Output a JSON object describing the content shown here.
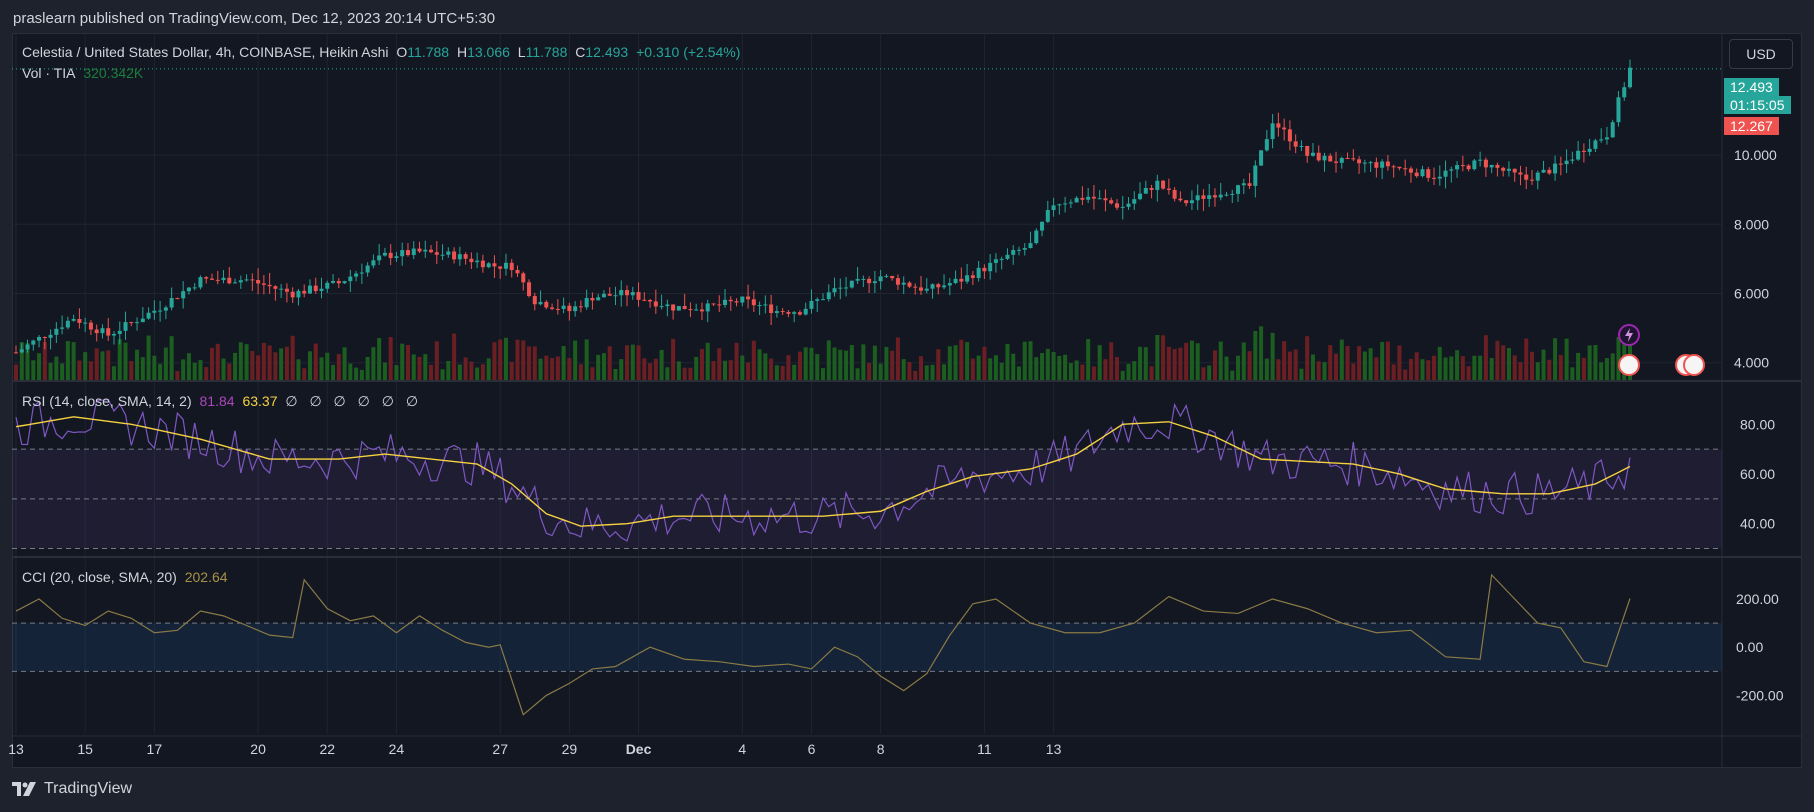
{
  "header": {
    "publish_line": "praslearn published on TradingView.com, Dec 12, 2023 20:14 UTC+5:30"
  },
  "legend_main": {
    "symbol": "Celestia / United States Dollar, 4h, COINBASE, Heikin Ashi",
    "o_label": "O",
    "o_value": "11.788",
    "h_label": "H",
    "h_value": "13.066",
    "l_label": "L",
    "l_value": "11.788",
    "c_label": "C",
    "c_value": "12.493",
    "change": "+0.310 (+2.54%)"
  },
  "legend_vol": {
    "label": "Vol · TIA",
    "value": "320.342K"
  },
  "legend_rsi": {
    "label": "RSI (14, close, SMA, 14, 2)",
    "value1": "81.84",
    "value2": "63.37",
    "extra": "∅ ∅ ∅ ∅ ∅ ∅"
  },
  "legend_cci": {
    "label": "CCI (20, close, SMA, 20)",
    "value": "202.64"
  },
  "currency_button": "USD",
  "price_tags": {
    "last_price": "12.493",
    "countdown": "01:15:05",
    "other_price": "12.267"
  },
  "footer": {
    "brand": "TradingView"
  },
  "colors": {
    "up": "#26a69a",
    "down": "#ef5350",
    "vol_up": "#1b5e20",
    "vol_down": "#6b1f23",
    "rsi_line": "#7e57c2",
    "rsi_ma": "#f5d142",
    "cci_line": "#8a7a46",
    "bg": "#131722"
  },
  "chart_data": [
    {
      "type": "candlestick",
      "title": "Celestia / United States Dollar, 4h, COINBASE, Heikin Ashi",
      "x_tick_labels": [
        "13",
        "15",
        "17",
        "20",
        "22",
        "24",
        "27",
        "29",
        "Dec",
        "4",
        "6",
        "8",
        "11",
        "13"
      ],
      "y_tick_labels": [
        "4.000",
        "6.000",
        "8.000",
        "10.000"
      ],
      "ylim": [
        3.5,
        13.5
      ],
      "close_path": [
        [
          0,
          4.3
        ],
        [
          10,
          5.3
        ],
        [
          16,
          4.8
        ],
        [
          25,
          5.6
        ],
        [
          32,
          6.4
        ],
        [
          40,
          6.4
        ],
        [
          48,
          6.0
        ],
        [
          56,
          6.3
        ],
        [
          64,
          7.1
        ],
        [
          70,
          7.2
        ],
        [
          76,
          7.1
        ],
        [
          83,
          6.8
        ],
        [
          86,
          6.8
        ],
        [
          90,
          5.8
        ],
        [
          96,
          5.5
        ],
        [
          100,
          5.9
        ],
        [
          106,
          6.0
        ],
        [
          114,
          5.6
        ],
        [
          120,
          5.6
        ],
        [
          126,
          5.8
        ],
        [
          132,
          5.5
        ],
        [
          136,
          5.5
        ],
        [
          142,
          6.1
        ],
        [
          150,
          6.5
        ],
        [
          158,
          6.1
        ],
        [
          164,
          6.4
        ],
        [
          170,
          6.9
        ],
        [
          176,
          7.4
        ],
        [
          180,
          8.6
        ],
        [
          186,
          8.8
        ],
        [
          192,
          8.5
        ],
        [
          198,
          9.2
        ],
        [
          202,
          8.6
        ],
        [
          208,
          8.9
        ],
        [
          214,
          9.1
        ],
        [
          218,
          11.0
        ],
        [
          224,
          10.0
        ],
        [
          230,
          9.8
        ],
        [
          238,
          9.7
        ],
        [
          246,
          9.4
        ],
        [
          254,
          9.8
        ],
        [
          262,
          9.3
        ],
        [
          268,
          9.7
        ],
        [
          272,
          10.2
        ],
        [
          276,
          10.6
        ],
        [
          280,
          12.5
        ]
      ],
      "last_price": 12.493
    },
    {
      "type": "bar",
      "title": "Vol · TIA",
      "last_value": "320.342K"
    },
    {
      "type": "line",
      "title": "RSI (14, close, SMA, 14, 2)",
      "y_tick_labels": [
        "40.00",
        "60.00",
        "80.00"
      ],
      "ylim": [
        27,
        97
      ],
      "bands": [
        30,
        50,
        70
      ],
      "rsi_value": 81.84,
      "rsi_ma_value": 63.37,
      "ma_path": [
        [
          0,
          79
        ],
        [
          10,
          83
        ],
        [
          20,
          80
        ],
        [
          32,
          74
        ],
        [
          44,
          66
        ],
        [
          56,
          66
        ],
        [
          64,
          68
        ],
        [
          72,
          66
        ],
        [
          80,
          64
        ],
        [
          86,
          56
        ],
        [
          92,
          44
        ],
        [
          98,
          39
        ],
        [
          106,
          40
        ],
        [
          114,
          43
        ],
        [
          122,
          43
        ],
        [
          130,
          43
        ],
        [
          140,
          43
        ],
        [
          150,
          45
        ],
        [
          158,
          53
        ],
        [
          166,
          59
        ],
        [
          176,
          62
        ],
        [
          184,
          68
        ],
        [
          192,
          80
        ],
        [
          200,
          81
        ],
        [
          208,
          75
        ],
        [
          216,
          66
        ],
        [
          224,
          65
        ],
        [
          232,
          64
        ],
        [
          240,
          60
        ],
        [
          248,
          54
        ],
        [
          258,
          52
        ],
        [
          266,
          52
        ],
        [
          274,
          56
        ],
        [
          280,
          63
        ]
      ]
    },
    {
      "type": "line",
      "title": "CCI (20, close, SMA, 20)",
      "y_tick_labels": [
        "200.00",
        "0.00",
        "-200.00"
      ],
      "ylim": [
        -360,
        370
      ],
      "bands": [
        -100,
        100
      ],
      "last_value": 202.64,
      "path": [
        [
          0,
          150
        ],
        [
          4,
          200
        ],
        [
          8,
          120
        ],
        [
          12,
          90
        ],
        [
          16,
          150
        ],
        [
          20,
          120
        ],
        [
          24,
          60
        ],
        [
          28,
          70
        ],
        [
          32,
          150
        ],
        [
          36,
          130
        ],
        [
          40,
          90
        ],
        [
          44,
          50
        ],
        [
          48,
          40
        ],
        [
          50,
          280
        ],
        [
          54,
          160
        ],
        [
          58,
          110
        ],
        [
          62,
          130
        ],
        [
          66,
          60
        ],
        [
          70,
          130
        ],
        [
          74,
          70
        ],
        [
          78,
          20
        ],
        [
          82,
          0
        ],
        [
          84,
          10
        ],
        [
          88,
          -280
        ],
        [
          92,
          -200
        ],
        [
          96,
          -150
        ],
        [
          100,
          -90
        ],
        [
          104,
          -80
        ],
        [
          110,
          0
        ],
        [
          116,
          -50
        ],
        [
          122,
          -60
        ],
        [
          128,
          -80
        ],
        [
          134,
          -70
        ],
        [
          138,
          -90
        ],
        [
          142,
          0
        ],
        [
          146,
          -40
        ],
        [
          150,
          -120
        ],
        [
          154,
          -180
        ],
        [
          158,
          -110
        ],
        [
          162,
          50
        ],
        [
          166,
          180
        ],
        [
          170,
          200
        ],
        [
          176,
          100
        ],
        [
          182,
          60
        ],
        [
          188,
          60
        ],
        [
          194,
          100
        ],
        [
          200,
          210
        ],
        [
          206,
          150
        ],
        [
          212,
          140
        ],
        [
          218,
          200
        ],
        [
          224,
          160
        ],
        [
          230,
          100
        ],
        [
          236,
          60
        ],
        [
          242,
          70
        ],
        [
          248,
          -40
        ],
        [
          254,
          -50
        ],
        [
          256,
          300
        ],
        [
          260,
          200
        ],
        [
          264,
          100
        ],
        [
          268,
          80
        ],
        [
          272,
          -60
        ],
        [
          276,
          -80
        ],
        [
          280,
          202
        ]
      ]
    }
  ]
}
